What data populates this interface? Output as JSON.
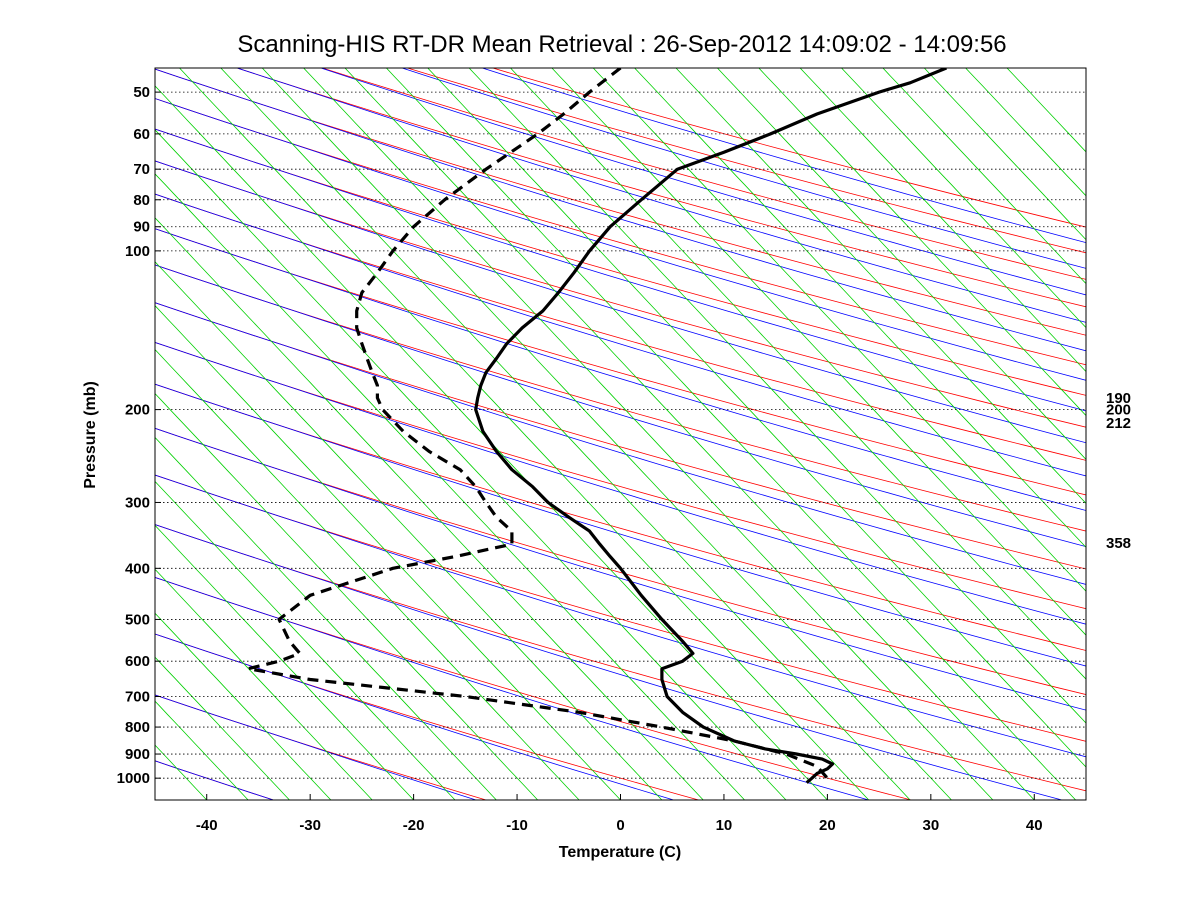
{
  "chart_data": {
    "type": "line",
    "title": "Scanning-HIS RT-DR Mean Retrieval : 26-Sep-2012 14:09:02 - 14:09:56",
    "xlabel": "Temperature (C)",
    "ylabel": "Pressure (mb)",
    "xlim": [
      -45,
      45
    ],
    "ylim": [
      1100,
      45
    ],
    "y_scale": "log",
    "x_ticks": [
      -40,
      -30,
      -20,
      -10,
      0,
      10,
      20,
      30,
      40
    ],
    "y_ticks": [
      50,
      60,
      70,
      80,
      90,
      100,
      200,
      300,
      400,
      500,
      600,
      700,
      800,
      900,
      1000
    ],
    "right_labels": [
      {
        "text": "190",
        "pressure": 190
      },
      {
        "text": "200",
        "pressure": 200
      },
      {
        "text": "212",
        "pressure": 212
      },
      {
        "text": "358",
        "pressure": 358
      }
    ],
    "grid": "horizontal dotted at pressure ticks",
    "colors": {
      "red": "#ff0000",
      "blue": "#0000ff",
      "green": "#00d000",
      "black": "#000000"
    },
    "background_lines": [
      {
        "name": "dry adiabats",
        "color": "red",
        "values": [
          -80,
          -60,
          -40,
          -20,
          0,
          20,
          40,
          60,
          80,
          100,
          120,
          140,
          160,
          180,
          200,
          220,
          240,
          260,
          280,
          300,
          320,
          340,
          360
        ]
      },
      {
        "name": "moist adiabats",
        "color": "blue",
        "values": [
          -80,
          -60,
          -40,
          -20,
          0,
          20,
          40,
          60,
          80,
          100,
          120,
          140,
          160,
          180,
          200,
          220,
          240,
          260,
          280,
          300,
          320,
          340,
          360
        ]
      },
      {
        "name": "mixing ratio lines",
        "color": "green",
        "values": [
          -40,
          -36,
          -32,
          -28,
          -24,
          -20,
          -16,
          -12,
          -8,
          -4,
          0,
          4,
          8,
          12,
          16,
          20,
          24,
          28,
          32,
          36,
          40,
          44,
          48,
          52,
          56,
          60,
          64,
          68,
          72,
          76,
          80,
          84,
          88,
          92,
          96,
          100,
          104
        ]
      }
    ],
    "series": [
      {
        "name": "Temperature",
        "style": "solid",
        "pressure": [
          45,
          48,
          50,
          55,
          60,
          65,
          70,
          80,
          90,
          100,
          110,
          120,
          130,
          140,
          150,
          160,
          170,
          180,
          190,
          200,
          220,
          240,
          260,
          280,
          300,
          320,
          340,
          360,
          380,
          400,
          450,
          500,
          550,
          580,
          600,
          620,
          650,
          700,
          750,
          800,
          850,
          880,
          900,
          920,
          940,
          960,
          980,
          1000,
          1020
        ],
        "values": [
          31.5,
          28,
          25,
          19,
          14.5,
          10,
          5.5,
          2,
          -1,
          -3,
          -4.5,
          -6,
          -7.5,
          -9.5,
          -11,
          -12,
          -13,
          -13.5,
          -13.8,
          -14,
          -13.3,
          -12,
          -10.5,
          -8.5,
          -7,
          -5,
          -3,
          -2,
          -1,
          0,
          2,
          4,
          6,
          7,
          6,
          4,
          4,
          4.5,
          6,
          8,
          11,
          14,
          17,
          19.5,
          20.5,
          20,
          19,
          18.5,
          18
        ]
      },
      {
        "name": "Dewpoint",
        "style": "dashed",
        "pressure": [
          45,
          50,
          55,
          60,
          70,
          80,
          90,
          100,
          110,
          120,
          130,
          140,
          150,
          160,
          170,
          180,
          190,
          200,
          220,
          240,
          260,
          280,
          300,
          320,
          340,
          360,
          380,
          400,
          450,
          500,
          550,
          580,
          600,
          620,
          650,
          700,
          750,
          800,
          850,
          900,
          950,
          1000
        ],
        "values": [
          0,
          -3,
          -5.5,
          -8,
          -13,
          -17,
          -20,
          -22,
          -23.5,
          -25,
          -25.5,
          -25.5,
          -25,
          -24.5,
          -24,
          -23.5,
          -23.5,
          -23,
          -21,
          -18.5,
          -15.5,
          -14,
          -13,
          -12,
          -10.5,
          -10.5,
          -16,
          -22,
          -30,
          -33,
          -32,
          -31,
          -33,
          -36,
          -30,
          -15,
          -4,
          4,
          11,
          16,
          19,
          20
        ]
      }
    ]
  }
}
